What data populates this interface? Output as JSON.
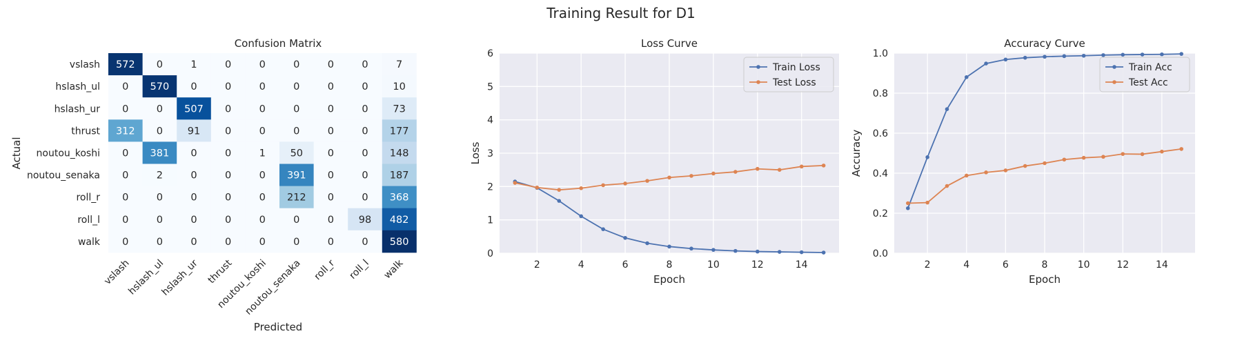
{
  "figure": {
    "title": "Training Result for D1"
  },
  "chart_data": [
    {
      "type": "heatmap",
      "title": "Confusion Matrix",
      "xlabel": "Predicted",
      "ylabel": "Actual",
      "x_categories": [
        "vslash",
        "hslash_ul",
        "hslash_ur",
        "thrust",
        "noutou_koshi",
        "noutou_senaka",
        "roll_r",
        "roll_l",
        "walk"
      ],
      "y_categories": [
        "vslash",
        "hslash_ul",
        "hslash_ur",
        "thrust",
        "noutou_koshi",
        "noutou_senaka",
        "roll_r",
        "roll_l",
        "walk"
      ],
      "colormap": "Blues",
      "values": [
        [
          572,
          0,
          1,
          0,
          0,
          0,
          0,
          0,
          7
        ],
        [
          0,
          570,
          0,
          0,
          0,
          0,
          0,
          0,
          10
        ],
        [
          0,
          0,
          507,
          0,
          0,
          0,
          0,
          0,
          73
        ],
        [
          312,
          0,
          91,
          0,
          0,
          0,
          0,
          0,
          177
        ],
        [
          0,
          381,
          0,
          0,
          1,
          50,
          0,
          0,
          148
        ],
        [
          0,
          2,
          0,
          0,
          0,
          391,
          0,
          0,
          187
        ],
        [
          0,
          0,
          0,
          0,
          0,
          212,
          0,
          0,
          368
        ],
        [
          0,
          0,
          0,
          0,
          0,
          0,
          0,
          98,
          482
        ],
        [
          0,
          0,
          0,
          0,
          0,
          0,
          0,
          0,
          580
        ]
      ]
    },
    {
      "type": "line",
      "title": "Loss Curve",
      "xlabel": "Epoch",
      "ylabel": "Loss",
      "x": [
        1,
        2,
        3,
        4,
        5,
        6,
        7,
        8,
        9,
        10,
        11,
        12,
        13,
        14,
        15
      ],
      "xlim": [
        0.3,
        15.7
      ],
      "ylim": [
        0,
        6
      ],
      "xticks": [
        "2",
        "4",
        "6",
        "8",
        "10",
        "12",
        "14"
      ],
      "yticks": [
        "0",
        "1",
        "2",
        "3",
        "4",
        "5",
        "6"
      ],
      "legend_position": "upper-right",
      "grid": true,
      "series": [
        {
          "name": "Train Loss",
          "color": "#4c72b0",
          "values": [
            2.15,
            1.96,
            1.57,
            1.11,
            0.72,
            0.46,
            0.3,
            0.2,
            0.14,
            0.1,
            0.07,
            0.05,
            0.04,
            0.03,
            0.02
          ]
        },
        {
          "name": "Test Loss",
          "color": "#dd8452",
          "values": [
            2.11,
            1.97,
            1.9,
            1.95,
            2.04,
            2.09,
            2.17,
            2.27,
            2.32,
            2.39,
            2.44,
            2.53,
            2.5,
            2.6,
            2.63
          ]
        }
      ]
    },
    {
      "type": "line",
      "title": "Accuracy Curve",
      "xlabel": "Epoch",
      "ylabel": "Accuracy",
      "x": [
        1,
        2,
        3,
        4,
        5,
        6,
        7,
        8,
        9,
        10,
        11,
        12,
        13,
        14,
        15
      ],
      "xlim": [
        0.3,
        15.7
      ],
      "ylim": [
        0,
        1
      ],
      "xticks": [
        "2",
        "4",
        "6",
        "8",
        "10",
        "12",
        "14"
      ],
      "yticks": [
        "0.0",
        "0.2",
        "0.4",
        "0.6",
        "0.8",
        "1.0"
      ],
      "legend_position": "upper-right",
      "grid": true,
      "series": [
        {
          "name": "Train Acc",
          "color": "#4c72b0",
          "values": [
            0.225,
            0.48,
            0.72,
            0.88,
            0.948,
            0.968,
            0.977,
            0.982,
            0.985,
            0.987,
            0.99,
            0.992,
            0.993,
            0.994,
            0.996
          ]
        },
        {
          "name": "Test Acc",
          "color": "#dd8452",
          "values": [
            0.25,
            0.253,
            0.336,
            0.388,
            0.404,
            0.414,
            0.436,
            0.45,
            0.468,
            0.477,
            0.482,
            0.496,
            0.495,
            0.508,
            0.521
          ]
        }
      ]
    }
  ]
}
